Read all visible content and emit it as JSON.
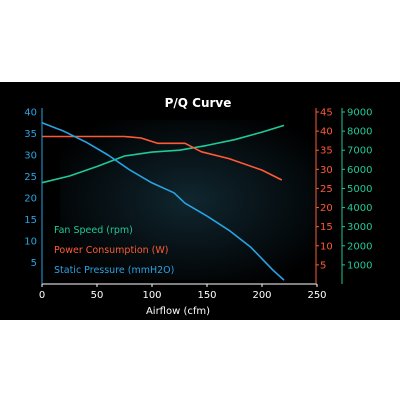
{
  "chart_data": {
    "type": "line",
    "title": "P/Q Curve",
    "xlabel": "Airflow (cfm)",
    "xlim": [
      0,
      250
    ],
    "x_ticks": [
      0,
      50,
      100,
      150,
      200,
      250
    ],
    "axes": {
      "pressure": {
        "range": [
          0,
          40
        ],
        "ticks": [
          5,
          10,
          15,
          20,
          25,
          30,
          35,
          40
        ],
        "color": "#29a3e3"
      },
      "power": {
        "range": [
          0,
          45
        ],
        "ticks": [
          5,
          10,
          15,
          20,
          25,
          30,
          35,
          40,
          45
        ],
        "color": "#ff5a36"
      },
      "speed": {
        "range": [
          0,
          9000
        ],
        "ticks": [
          1000,
          2000,
          3000,
          4000,
          5000,
          6000,
          7000,
          8000,
          9000
        ],
        "color": "#20c997"
      }
    },
    "legend": [
      "Fan Speed (rpm)",
      "Power Consumption (W)",
      "Static Pressure (mmH2O)"
    ],
    "legend_position": "left-center",
    "series": [
      {
        "key": "speed",
        "name": "Fan Speed (rpm)",
        "axis": "speed",
        "color": "#20c997",
        "x": [
          0,
          25,
          50,
          75,
          100,
          125,
          150,
          175,
          200,
          220
        ],
        "y": [
          5300,
          5650,
          6150,
          6700,
          6900,
          7000,
          7250,
          7550,
          7950,
          8300
        ]
      },
      {
        "key": "power",
        "name": "Power Consumption (W)",
        "axis": "power",
        "color": "#ff5a36",
        "x": [
          0,
          50,
          75,
          90,
          105,
          130,
          145,
          170,
          200,
          218
        ],
        "y": [
          38.6,
          38.6,
          38.6,
          38.2,
          36.8,
          36.8,
          34.6,
          32.8,
          29.8,
          27.2
        ]
      },
      {
        "key": "pressure",
        "name": "Static Pressure (mmH2O)",
        "axis": "pressure",
        "color": "#29a3e3",
        "x": [
          0,
          20,
          40,
          60,
          80,
          100,
          120,
          130,
          150,
          170,
          190,
          210,
          220
        ],
        "y": [
          37.5,
          35.5,
          33,
          30,
          26.5,
          23.5,
          21.2,
          18.8,
          15.8,
          12.5,
          8.5,
          3.2,
          0.9
        ]
      }
    ]
  }
}
